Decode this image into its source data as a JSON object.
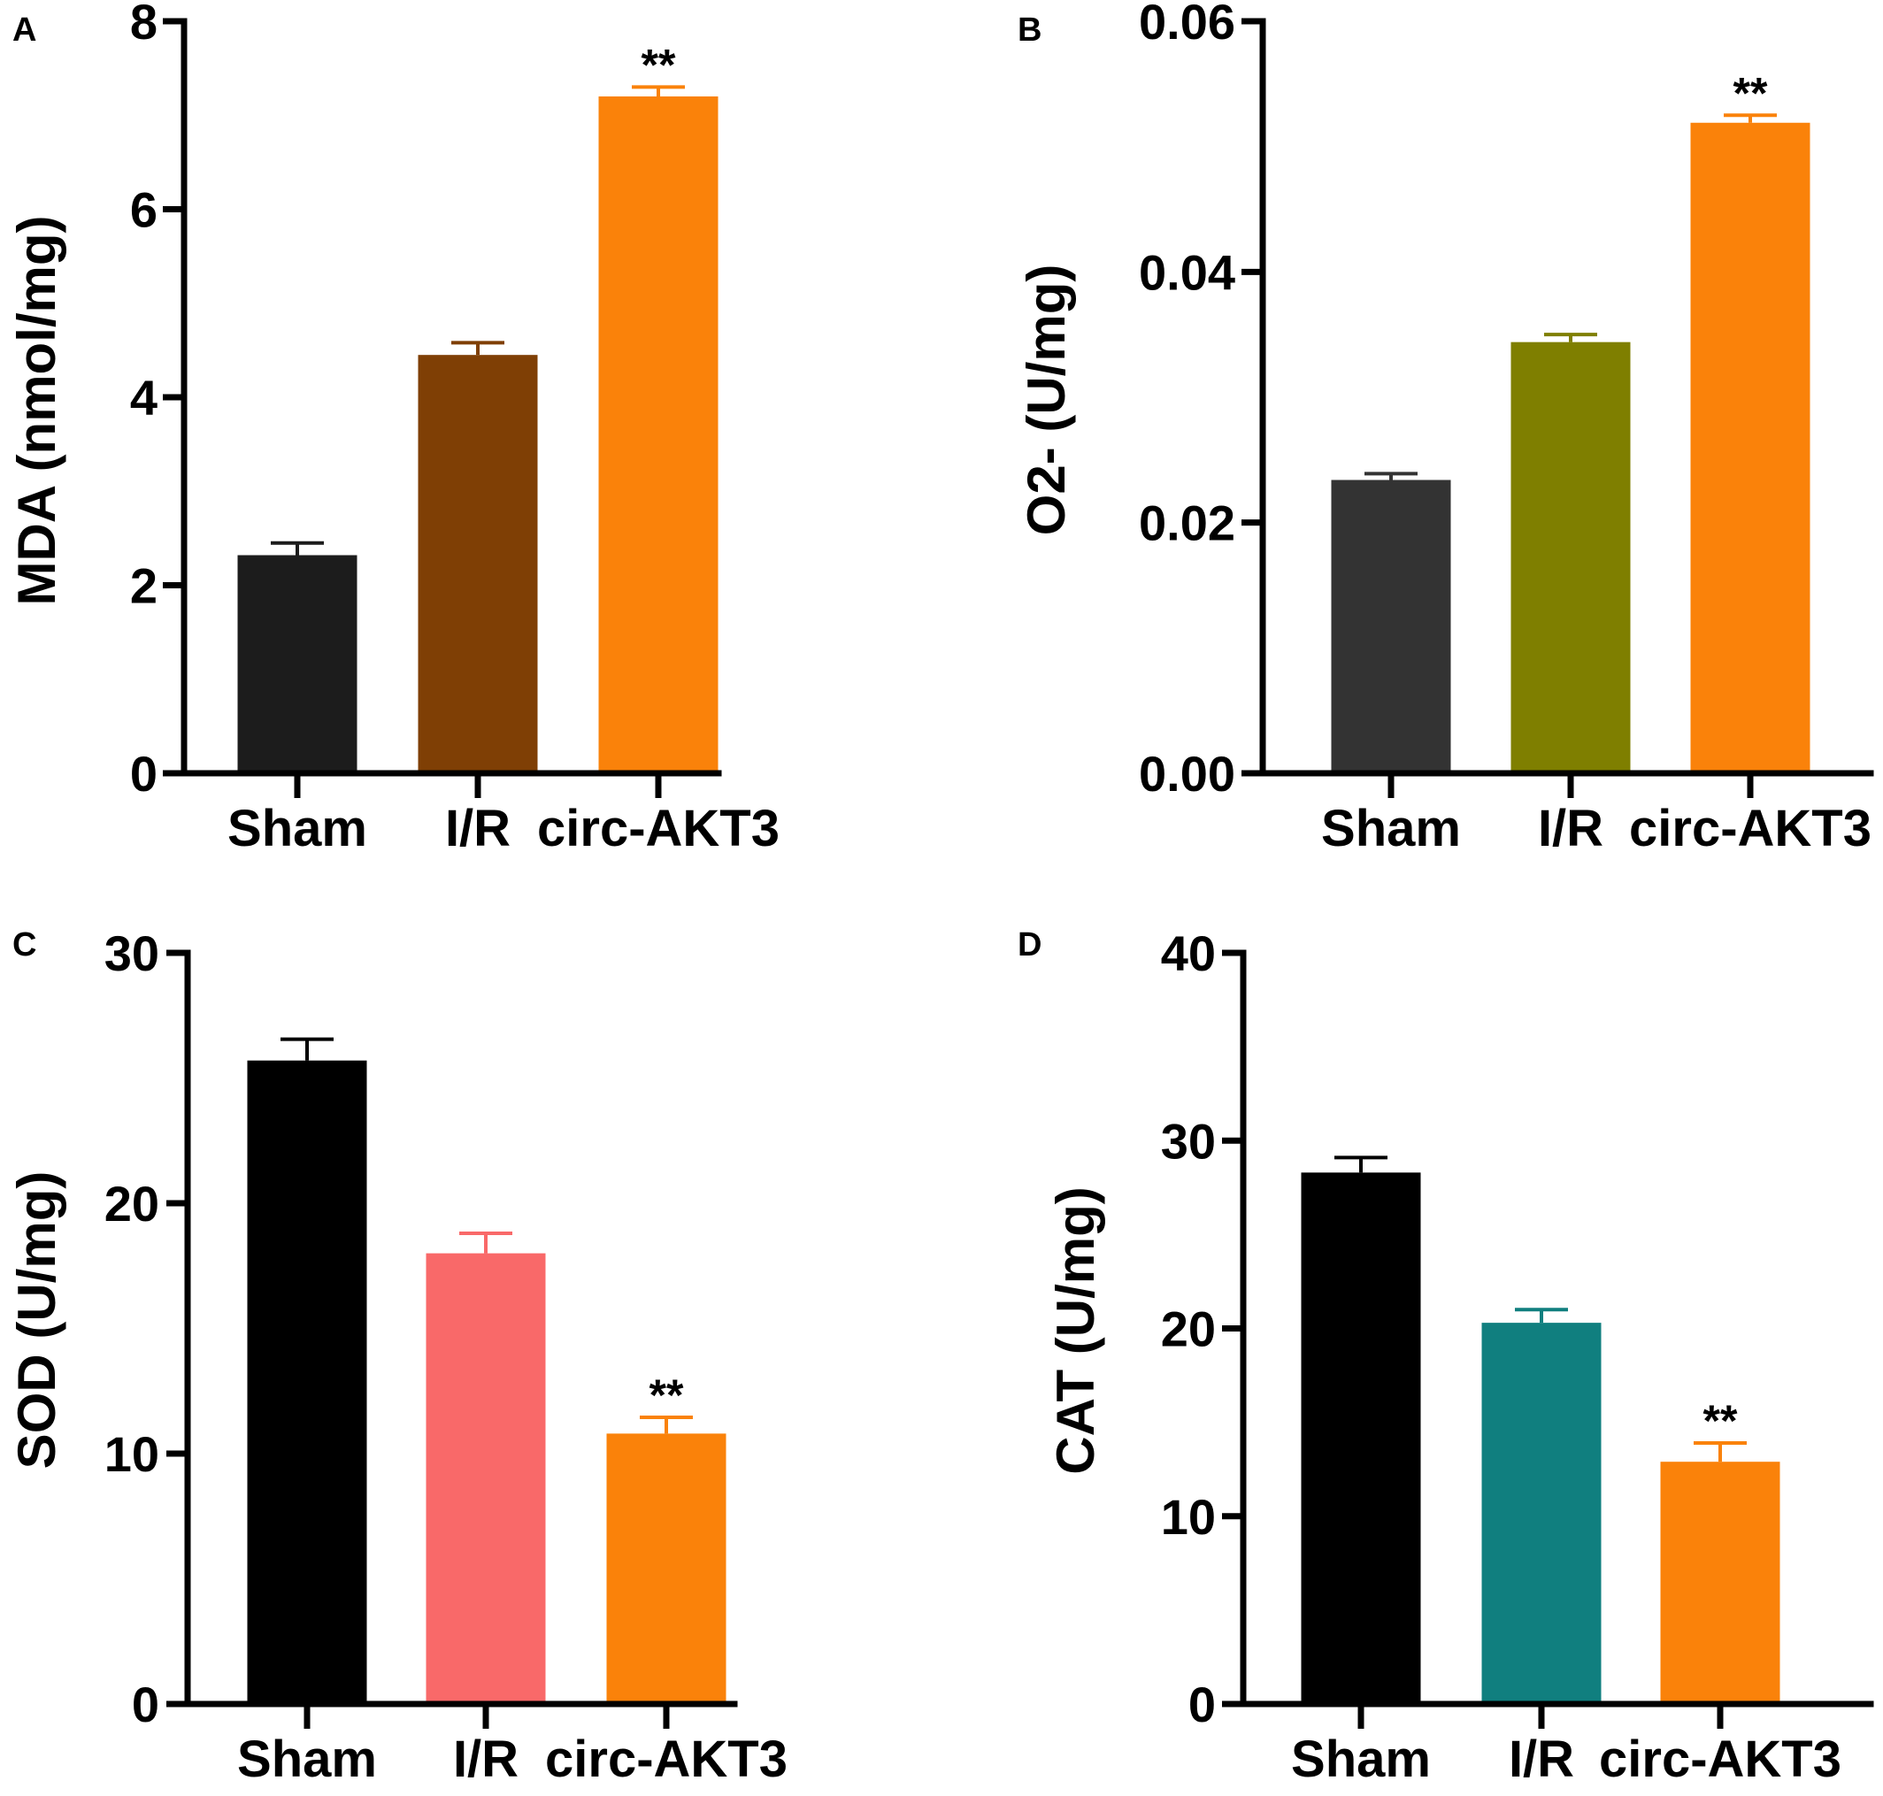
{
  "chart_data": [
    {
      "panel": "A",
      "type": "bar",
      "categories": [
        "Sham",
        "I/R",
        "circ-AKT3"
      ],
      "values": [
        2.32,
        4.45,
        7.2
      ],
      "errors": [
        0.13,
        0.13,
        0.1
      ],
      "colors": [
        "#1c1c1c",
        "#7f3f05",
        "#fa820a"
      ],
      "significance": [
        "",
        "",
        "**"
      ],
      "ylabel": "MDA (nmol/mg)",
      "ylim": [
        0,
        8
      ],
      "yticks": [
        "0",
        "2",
        "4",
        "6",
        "8"
      ],
      "ytick_values": [
        0,
        2,
        4,
        6,
        8
      ]
    },
    {
      "panel": "B",
      "type": "bar",
      "categories": [
        "Sham",
        "I/R",
        "circ-AKT3"
      ],
      "values": [
        0.0234,
        0.0344,
        0.0519
      ],
      "errors": [
        0.0005,
        0.0006,
        0.0006
      ],
      "colors": [
        "#333333",
        "#7f7f00",
        "#fa820a"
      ],
      "significance": [
        "",
        "",
        "**"
      ],
      "ylabel": "O2- (U/mg)",
      "ylim": [
        0,
        0.06
      ],
      "yticks": [
        "0.00",
        "0.02",
        "0.04",
        "0.06"
      ],
      "ytick_values": [
        0,
        0.02,
        0.04,
        0.06
      ]
    },
    {
      "panel": "C",
      "type": "bar",
      "categories": [
        "Sham",
        "I/R",
        "circ-AKT3"
      ],
      "values": [
        25.7,
        18.0,
        10.8
      ],
      "errors": [
        0.85,
        0.8,
        0.65
      ],
      "colors": [
        "#000000",
        "#f96969",
        "#fa820a"
      ],
      "significance": [
        "",
        "",
        "**"
      ],
      "ylabel": "SOD (U/mg)",
      "ylim": [
        0,
        30
      ],
      "yticks": [
        "0",
        "10",
        "20",
        "30"
      ],
      "ytick_values": [
        0,
        10,
        20,
        30
      ]
    },
    {
      "panel": "D",
      "type": "bar",
      "categories": [
        "Sham",
        "I/R",
        "circ-AKT3"
      ],
      "values": [
        28.3,
        20.3,
        12.9
      ],
      "errors": [
        0.8,
        0.7,
        1.0
      ],
      "colors": [
        "#000000",
        "#107f7f",
        "#fa820a"
      ],
      "significance": [
        "",
        "",
        "**"
      ],
      "ylabel": "CAT (U/mg)",
      "ylim": [
        0,
        40
      ],
      "yticks": [
        "0",
        "10",
        "20",
        "30",
        "40"
      ],
      "ytick_values": [
        0,
        10,
        20,
        30,
        40
      ]
    }
  ]
}
